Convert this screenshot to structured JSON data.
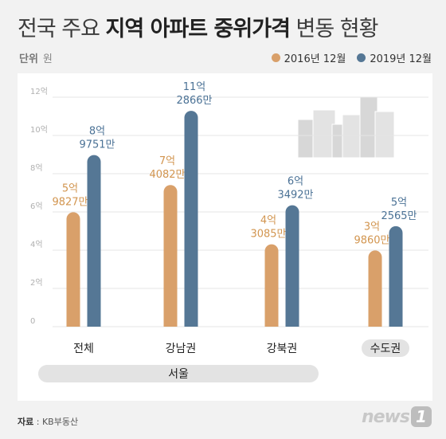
{
  "title_part1": "전국 주요",
  "title_part2": "지역 아파트 중위가격",
  "title_part3": "변동 현황",
  "unit_label": "단위",
  "unit_value": "원",
  "source_label": "자료",
  "source_value": ": KB부동산",
  "logo_text": "news",
  "logo_badge": "1",
  "colors": {
    "series_2016": "#d9a06a",
    "series_2019": "#557795",
    "label_2016": "#d2954f",
    "label_2019": "#4a7195"
  },
  "chart_data": {
    "type": "bar",
    "categories": [
      "전체",
      "강남권",
      "강북권",
      "수도권"
    ],
    "group_label": "서울",
    "ylim": [
      0,
      12
    ],
    "yticks": [
      "0",
      "2억",
      "4억",
      "6억",
      "8억",
      "10억",
      "12억"
    ],
    "series": [
      {
        "name": "2016년 12월",
        "values": [
          5.9827,
          7.4082,
          4.3085,
          3.986
        ],
        "labels": [
          [
            "5억",
            "9827만"
          ],
          [
            "7억",
            "4082만"
          ],
          [
            "4억",
            "3085만"
          ],
          [
            "3억",
            "9860만"
          ]
        ]
      },
      {
        "name": "2019년 12월",
        "values": [
          8.9751,
          11.2866,
          6.3492,
          5.2565
        ],
        "labels": [
          [
            "8억",
            "9751만"
          ],
          [
            "11억",
            "2866만"
          ],
          [
            "6억",
            "3492만"
          ],
          [
            "5억",
            "2565만"
          ]
        ]
      }
    ]
  }
}
